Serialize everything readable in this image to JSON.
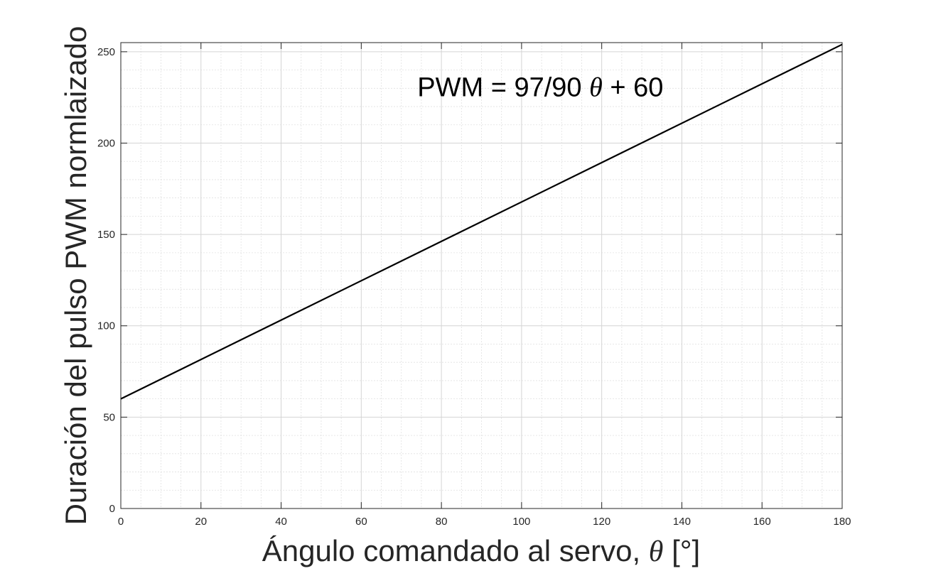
{
  "chart_data": {
    "type": "line",
    "title": "",
    "xlabel_prefix": "Ángulo comandado al servo,",
    "xlabel_symbol": "θ",
    "xlabel_suffix": "[°]",
    "ylabel": "Duración del pulso PWM normlaizado",
    "xlim": [
      0,
      180
    ],
    "ylim": [
      0,
      255
    ],
    "xticks": [
      0,
      20,
      40,
      60,
      80,
      100,
      120,
      140,
      160,
      180
    ],
    "yticks": [
      0,
      50,
      100,
      150,
      200,
      250
    ],
    "x_minor_step": 5,
    "y_minor_step": 10,
    "grid": true,
    "minor_grid": true,
    "series": [
      {
        "x": [
          0,
          180
        ],
        "y": [
          60,
          254
        ],
        "color": "#000000"
      }
    ],
    "annotation": {
      "prefix": "PWM = 97/90",
      "symbol": "θ",
      "suffix": "+ 60",
      "x": 74,
      "y": 231
    }
  },
  "colors": {
    "grid": "#e0e0e0",
    "axis": "#262626",
    "line": "#000000"
  }
}
